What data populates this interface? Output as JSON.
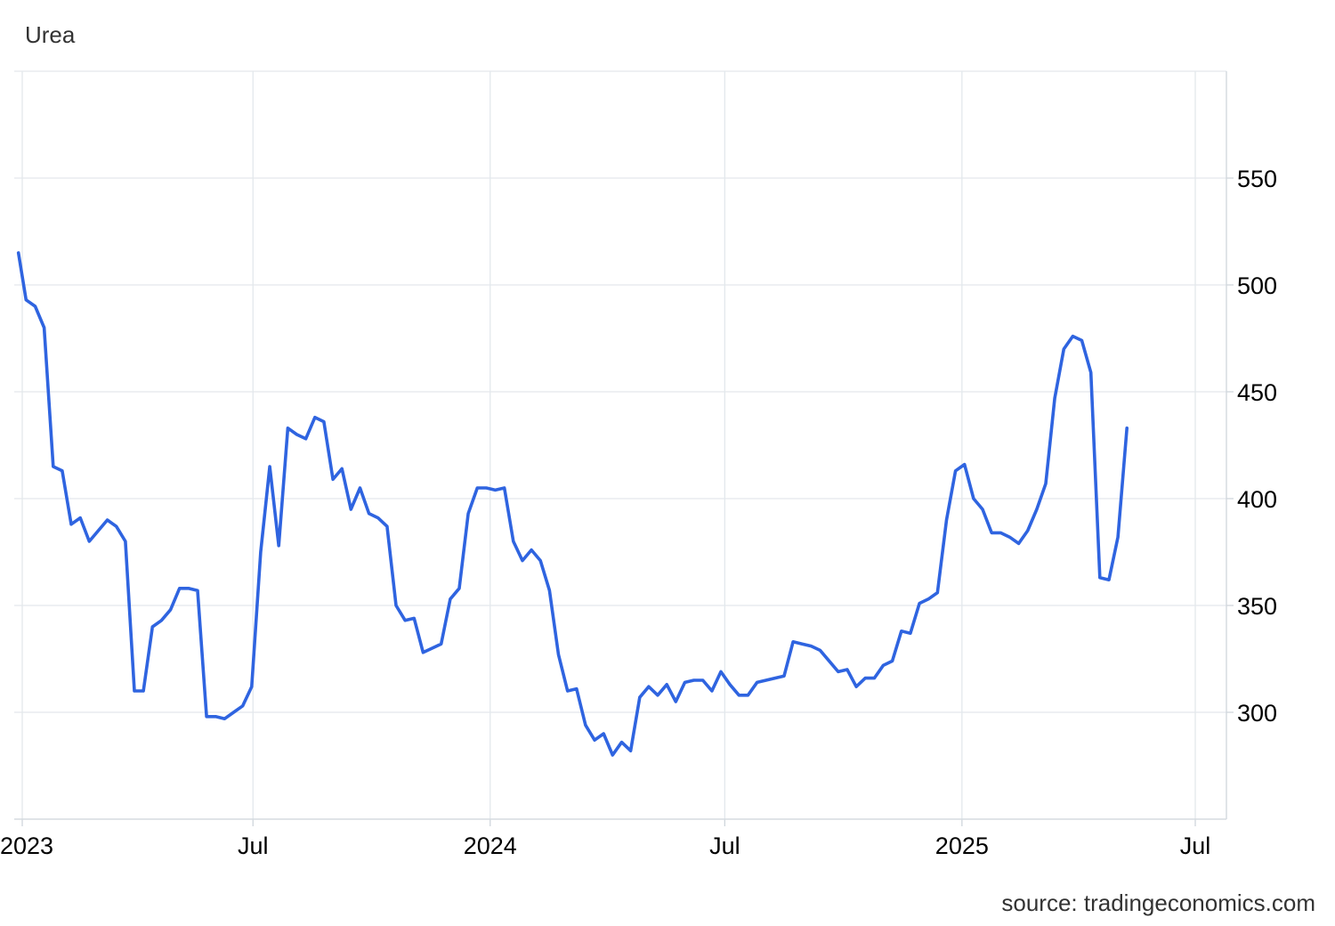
{
  "title": "Urea",
  "source": "source: tradingeconomics.com",
  "colors": {
    "line": "#2f64e0",
    "grid": "#e3e8ec"
  },
  "chart_data": {
    "type": "line",
    "title": "Urea",
    "ylim": [
      250,
      600
    ],
    "yticks": [
      300,
      350,
      400,
      450,
      500,
      550
    ],
    "xlim": [
      "2023-01-03",
      "2025-07-15"
    ],
    "xticks": [
      {
        "date": "2023-01-03",
        "label": "2023"
      },
      {
        "date": "2023-07-01",
        "label": "Jul"
      },
      {
        "date": "2024-01-01",
        "label": "2024"
      },
      {
        "date": "2024-07-01",
        "label": "Jul"
      },
      {
        "date": "2025-01-01",
        "label": "2025"
      },
      {
        "date": "2025-07-01",
        "label": "Jul"
      }
    ],
    "grid": true,
    "y_axis_side": "right",
    "series": [
      {
        "points": [
          [
            "2022-12-31",
            515
          ],
          [
            "2023-01-06",
            493
          ],
          [
            "2023-01-13",
            490
          ],
          [
            "2023-01-20",
            480
          ],
          [
            "2023-01-27",
            415
          ],
          [
            "2023-02-03",
            413
          ],
          [
            "2023-02-10",
            388
          ],
          [
            "2023-02-17",
            391
          ],
          [
            "2023-02-24",
            380
          ],
          [
            "2023-03-10",
            390
          ],
          [
            "2023-03-17",
            387
          ],
          [
            "2023-03-24",
            380
          ],
          [
            "2023-03-31",
            310
          ],
          [
            "2023-04-07",
            310
          ],
          [
            "2023-04-14",
            340
          ],
          [
            "2023-04-21",
            343
          ],
          [
            "2023-04-28",
            348
          ],
          [
            "2023-05-05",
            358
          ],
          [
            "2023-05-12",
            358
          ],
          [
            "2023-05-19",
            357
          ],
          [
            "2023-05-26",
            298
          ],
          [
            "2023-06-02",
            298
          ],
          [
            "2023-06-09",
            297
          ],
          [
            "2023-06-16",
            300
          ],
          [
            "2023-06-23",
            303
          ],
          [
            "2023-06-30",
            312
          ],
          [
            "2023-07-07",
            375
          ],
          [
            "2023-07-14",
            415
          ],
          [
            "2023-07-21",
            378
          ],
          [
            "2023-07-28",
            433
          ],
          [
            "2023-08-04",
            430
          ],
          [
            "2023-08-11",
            428
          ],
          [
            "2023-08-18",
            438
          ],
          [
            "2023-08-25",
            436
          ],
          [
            "2023-09-01",
            409
          ],
          [
            "2023-09-08",
            414
          ],
          [
            "2023-09-15",
            395
          ],
          [
            "2023-09-22",
            405
          ],
          [
            "2023-09-29",
            393
          ],
          [
            "2023-10-06",
            391
          ],
          [
            "2023-10-13",
            387
          ],
          [
            "2023-10-20",
            350
          ],
          [
            "2023-10-27",
            343
          ],
          [
            "2023-11-03",
            344
          ],
          [
            "2023-11-10",
            328
          ],
          [
            "2023-11-17",
            330
          ],
          [
            "2023-11-24",
            332
          ],
          [
            "2023-12-01",
            353
          ],
          [
            "2023-12-08",
            358
          ],
          [
            "2023-12-15",
            393
          ],
          [
            "2023-12-22",
            405
          ],
          [
            "2023-12-29",
            405
          ],
          [
            "2024-01-05",
            404
          ],
          [
            "2024-01-12",
            405
          ],
          [
            "2024-01-19",
            380
          ],
          [
            "2024-01-26",
            371
          ],
          [
            "2024-02-02",
            376
          ],
          [
            "2024-02-09",
            371
          ],
          [
            "2024-02-16",
            357
          ],
          [
            "2024-02-23",
            327
          ],
          [
            "2024-03-01",
            310
          ],
          [
            "2024-03-08",
            311
          ],
          [
            "2024-03-15",
            294
          ],
          [
            "2024-03-22",
            287
          ],
          [
            "2024-03-29",
            290
          ],
          [
            "2024-04-05",
            280
          ],
          [
            "2024-04-12",
            286
          ],
          [
            "2024-04-19",
            282
          ],
          [
            "2024-04-26",
            307
          ],
          [
            "2024-05-03",
            312
          ],
          [
            "2024-05-10",
            308
          ],
          [
            "2024-05-17",
            313
          ],
          [
            "2024-05-24",
            305
          ],
          [
            "2024-05-31",
            314
          ],
          [
            "2024-06-07",
            315
          ],
          [
            "2024-06-14",
            315
          ],
          [
            "2024-06-21",
            310
          ],
          [
            "2024-06-28",
            319
          ],
          [
            "2024-07-05",
            313
          ],
          [
            "2024-07-12",
            308
          ],
          [
            "2024-07-19",
            308
          ],
          [
            "2024-07-26",
            314
          ],
          [
            "2024-08-02",
            315
          ],
          [
            "2024-08-09",
            316
          ],
          [
            "2024-08-16",
            317
          ],
          [
            "2024-08-23",
            333
          ],
          [
            "2024-08-30",
            332
          ],
          [
            "2024-09-06",
            331
          ],
          [
            "2024-09-13",
            329
          ],
          [
            "2024-09-20",
            324
          ],
          [
            "2024-09-27",
            319
          ],
          [
            "2024-10-04",
            320
          ],
          [
            "2024-10-11",
            312
          ],
          [
            "2024-10-18",
            316
          ],
          [
            "2024-10-25",
            316
          ],
          [
            "2024-11-01",
            322
          ],
          [
            "2024-11-08",
            324
          ],
          [
            "2024-11-15",
            338
          ],
          [
            "2024-11-22",
            337
          ],
          [
            "2024-11-29",
            351
          ],
          [
            "2024-12-06",
            353
          ],
          [
            "2024-12-13",
            356
          ],
          [
            "2024-12-20",
            390
          ],
          [
            "2024-12-27",
            413
          ],
          [
            "2025-01-03",
            416
          ],
          [
            "2025-01-10",
            400
          ],
          [
            "2025-01-17",
            395
          ],
          [
            "2025-01-24",
            384
          ],
          [
            "2025-01-31",
            384
          ],
          [
            "2025-02-07",
            382
          ],
          [
            "2025-02-14",
            379
          ],
          [
            "2025-02-21",
            385
          ],
          [
            "2025-02-28",
            395
          ],
          [
            "2025-03-07",
            407
          ],
          [
            "2025-03-14",
            447
          ],
          [
            "2025-03-21",
            470
          ],
          [
            "2025-03-28",
            476
          ],
          [
            "2025-04-04",
            474
          ],
          [
            "2025-04-11",
            459
          ],
          [
            "2025-04-18",
            363
          ],
          [
            "2025-04-25",
            362
          ],
          [
            "2025-05-02",
            382
          ],
          [
            "2025-05-09",
            433
          ]
        ]
      }
    ]
  }
}
